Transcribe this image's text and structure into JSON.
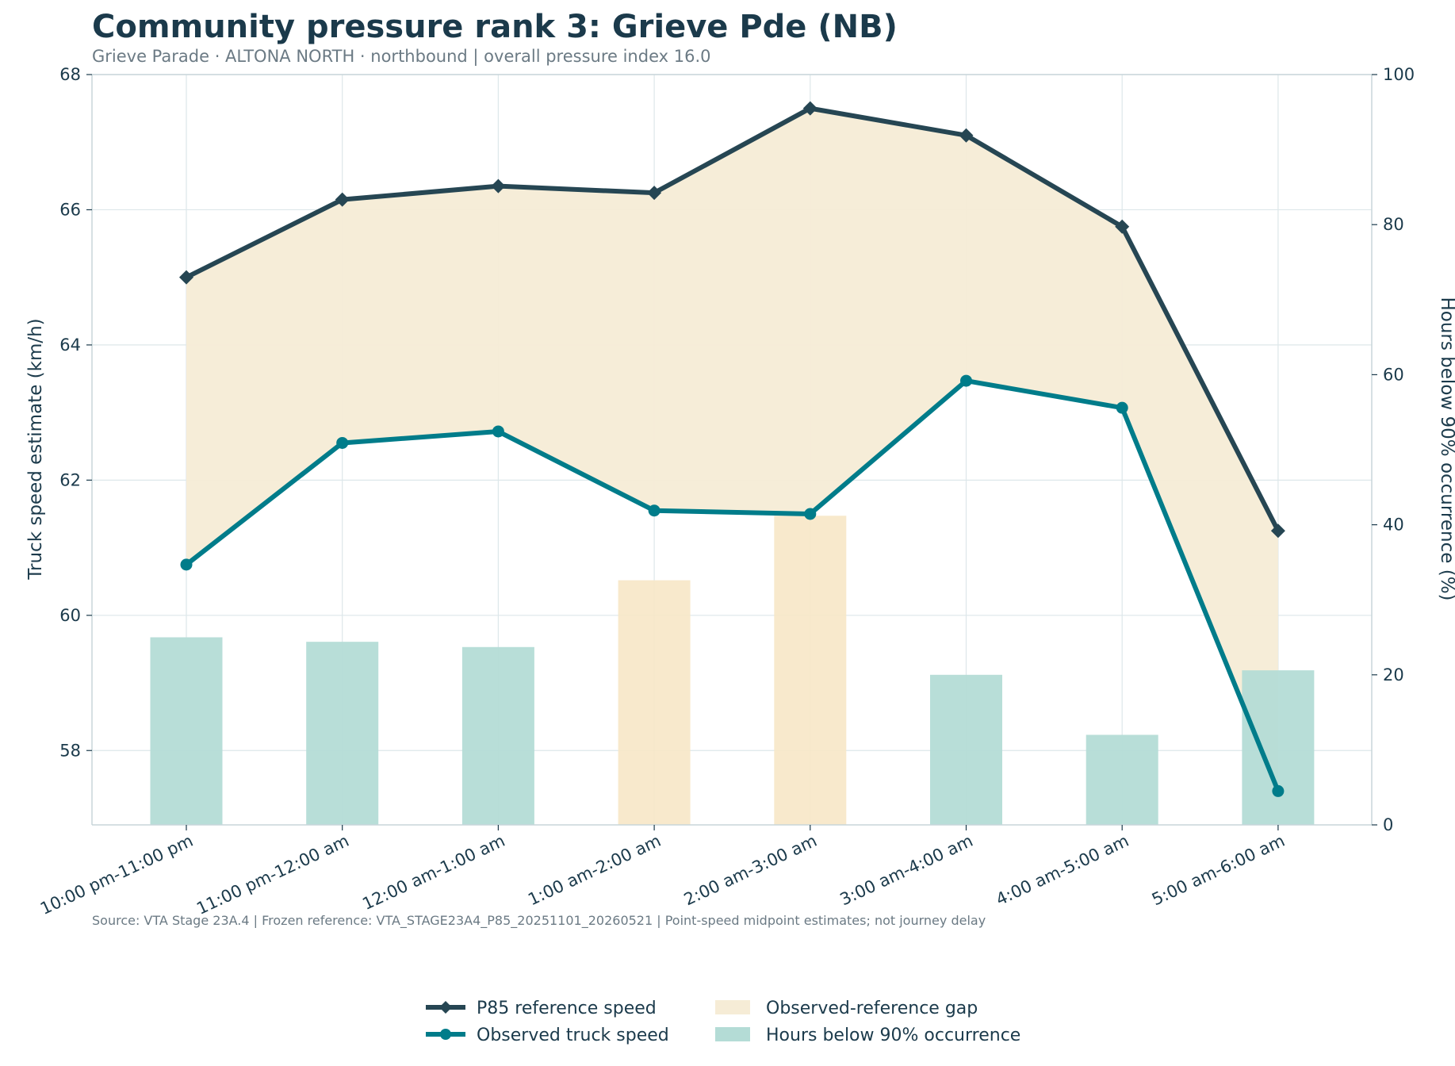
{
  "title": "Community pressure rank 3: Grieve Pde (NB)",
  "subtitle": "Grieve Parade · ALTONA NORTH · northbound | overall pressure index 16.0",
  "source": "Source: VTA Stage 23A.4 | Frozen reference: VTA_STAGE23A4_P85_20251101_20260521 | Point-speed midpoint estimates; not journey delay",
  "colors": {
    "reference": "#264653",
    "observed": "#007c8a",
    "gap": "#f6ecd6",
    "bar_normal": "#b4dcd6",
    "bar_highlight": "#f7e7c6",
    "grid": "#dde7ea",
    "axis": "#c8d6da"
  },
  "chart_data": {
    "type": "line",
    "categories": [
      "10:00 pm-11:00 pm",
      "11:00 pm-12:00 am",
      "12:00 am-1:00 am",
      "1:00 am-2:00 am",
      "2:00 am-3:00 am",
      "3:00 am-4:00 am",
      "4:00 am-5:00 am",
      "5:00 am-6:00 am"
    ],
    "series": [
      {
        "name": "P85 reference speed",
        "axis": "left",
        "marker": "diamond",
        "values": [
          65.0,
          66.15,
          66.35,
          66.25,
          67.5,
          67.1,
          65.75,
          61.25
        ]
      },
      {
        "name": "Observed truck speed",
        "axis": "left",
        "marker": "circle",
        "values": [
          60.75,
          62.55,
          62.72,
          61.55,
          61.5,
          63.47,
          63.07,
          57.4
        ]
      },
      {
        "name": "Hours below 90% occurrence",
        "axis": "right",
        "type": "bar",
        "values": [
          25.0,
          24.4,
          23.7,
          32.6,
          41.2,
          20.0,
          12.0,
          20.6
        ],
        "highlight": [
          false,
          false,
          false,
          true,
          true,
          false,
          false,
          false
        ]
      }
    ],
    "fill_between": {
      "name": "Observed-reference gap",
      "upper": "P85 reference speed",
      "lower": "Observed truck speed"
    },
    "ylabel": "Truck speed estimate (km/h)",
    "y2label": "Hours below 90% occurrence (%)",
    "ylim": [
      56.9,
      68.0
    ],
    "y2lim": [
      0,
      100
    ],
    "yticks": [
      58,
      60,
      62,
      64,
      66,
      68
    ],
    "y2ticks": [
      0,
      20,
      40,
      60,
      80,
      100
    ],
    "grid": true,
    "legend": {
      "placement": "bottom-center",
      "items": [
        "P85 reference speed",
        "Observed truck speed",
        "Observed-reference gap",
        "Hours below 90% occurrence"
      ]
    }
  }
}
